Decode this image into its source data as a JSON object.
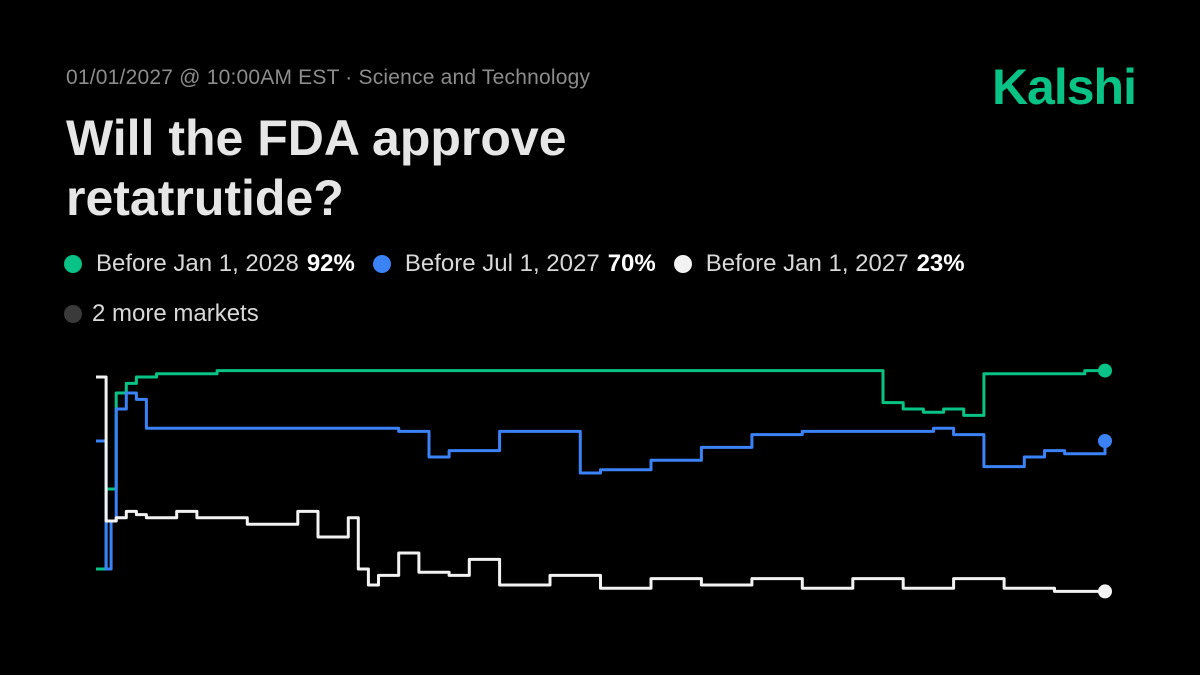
{
  "header": {
    "meta": "01/01/2027 @ 10:00AM EST · Science and Technology",
    "brand": "Kalshi",
    "title": "Will the FDA approve retatrutide?"
  },
  "legend": {
    "items": [
      {
        "label": "Before Jan 1, 2028",
        "value": "92%",
        "color": "#09c285"
      },
      {
        "label": "Before Jul 1, 2027",
        "value": "70%",
        "color": "#3b82f6"
      },
      {
        "label": "Before Jan 1, 2027",
        "value": "23%",
        "color": "#f2f2f2"
      }
    ],
    "more_label": "2 more markets",
    "more_color": "#3a3a3a"
  },
  "chart_data": {
    "type": "line",
    "title": "Will the FDA approve retatrutide?",
    "ylim": [
      0,
      100
    ],
    "grid": false,
    "legend_position": "top",
    "series": [
      {
        "name": "Before Jan 1, 2028",
        "color": "#09c285",
        "x": [
          0,
          1,
          2,
          3,
          4,
          5,
          6,
          8,
          10,
          12,
          15,
          20,
          25,
          30,
          35,
          40,
          45,
          50,
          55,
          60,
          65,
          70,
          75,
          78,
          80,
          82,
          84,
          86,
          88,
          90,
          92,
          94,
          96,
          98,
          100
        ],
        "values": [
          30,
          55,
          85,
          88,
          90,
          90,
          91,
          91,
          91,
          92,
          92,
          92,
          92,
          92,
          92,
          92,
          92,
          92,
          92,
          92,
          92,
          92,
          92,
          82,
          80,
          79,
          80,
          78,
          91,
          91,
          91,
          91,
          91,
          92,
          92
        ]
      },
      {
        "name": "Before Jul 1, 2027",
        "color": "#3b82f6",
        "x": [
          0,
          1,
          1.5,
          2,
          3,
          4,
          5,
          6,
          8,
          10,
          15,
          20,
          25,
          30,
          33,
          35,
          40,
          45,
          48,
          50,
          55,
          60,
          65,
          70,
          75,
          80,
          83,
          85,
          88,
          90,
          92,
          94,
          96,
          98,
          100
        ],
        "values": [
          70,
          30,
          45,
          80,
          85,
          83,
          74,
          74,
          74,
          74,
          74,
          74,
          74,
          73,
          65,
          67,
          73,
          73,
          60,
          61,
          64,
          68,
          72,
          73,
          73,
          73,
          74,
          72,
          62,
          62,
          65,
          67,
          66,
          66,
          70
        ]
      },
      {
        "name": "Before Jan 1, 2027",
        "color": "#f2f2f2",
        "x": [
          0,
          1,
          2,
          3,
          4,
          5,
          8,
          10,
          15,
          20,
          22,
          25,
          26,
          27,
          28,
          30,
          32,
          35,
          37,
          40,
          45,
          50,
          55,
          60,
          65,
          70,
          75,
          80,
          85,
          90,
          95,
          100
        ],
        "values": [
          90,
          45,
          46,
          48,
          47,
          46,
          48,
          46,
          44,
          48,
          40,
          46,
          30,
          25,
          28,
          35,
          29,
          28,
          33,
          25,
          28,
          24,
          27,
          25,
          27,
          24,
          27,
          24,
          27,
          24,
          23,
          23
        ]
      }
    ]
  }
}
